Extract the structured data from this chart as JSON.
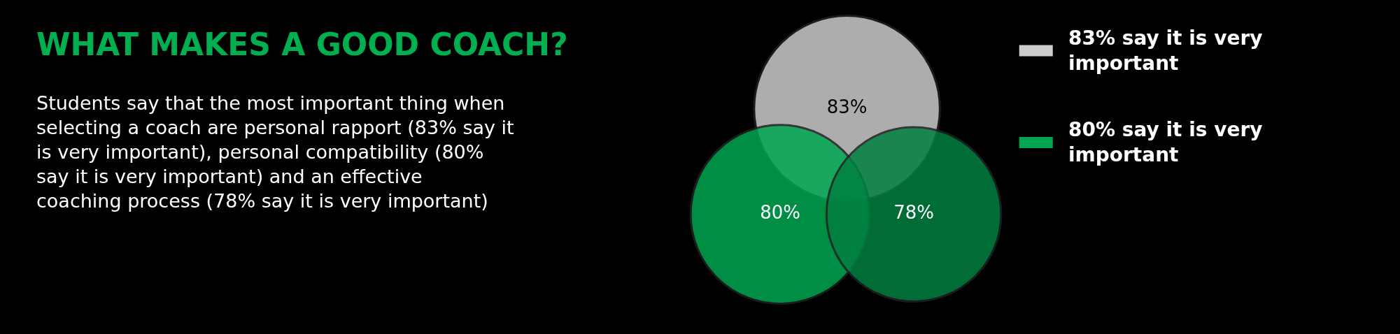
{
  "chart_data": {
    "type": "other",
    "title": "WHAT MAKES A GOOD COACH?",
    "subtitle": "Students say that the most important thing when selecting a coach are personal rapport (83% say it is very important), personal compatibility (80% say it is very important) and an effective coaching process (78% say it is very important)",
    "categories": [
      "83% say it is very important",
      "80% say it is very important",
      null
    ],
    "values": [
      83,
      80,
      78
    ],
    "value_labels": [
      "83%",
      "80%",
      "78%"
    ],
    "colors": [
      "#cccccc",
      "#00a651",
      "#008040"
    ]
  }
}
